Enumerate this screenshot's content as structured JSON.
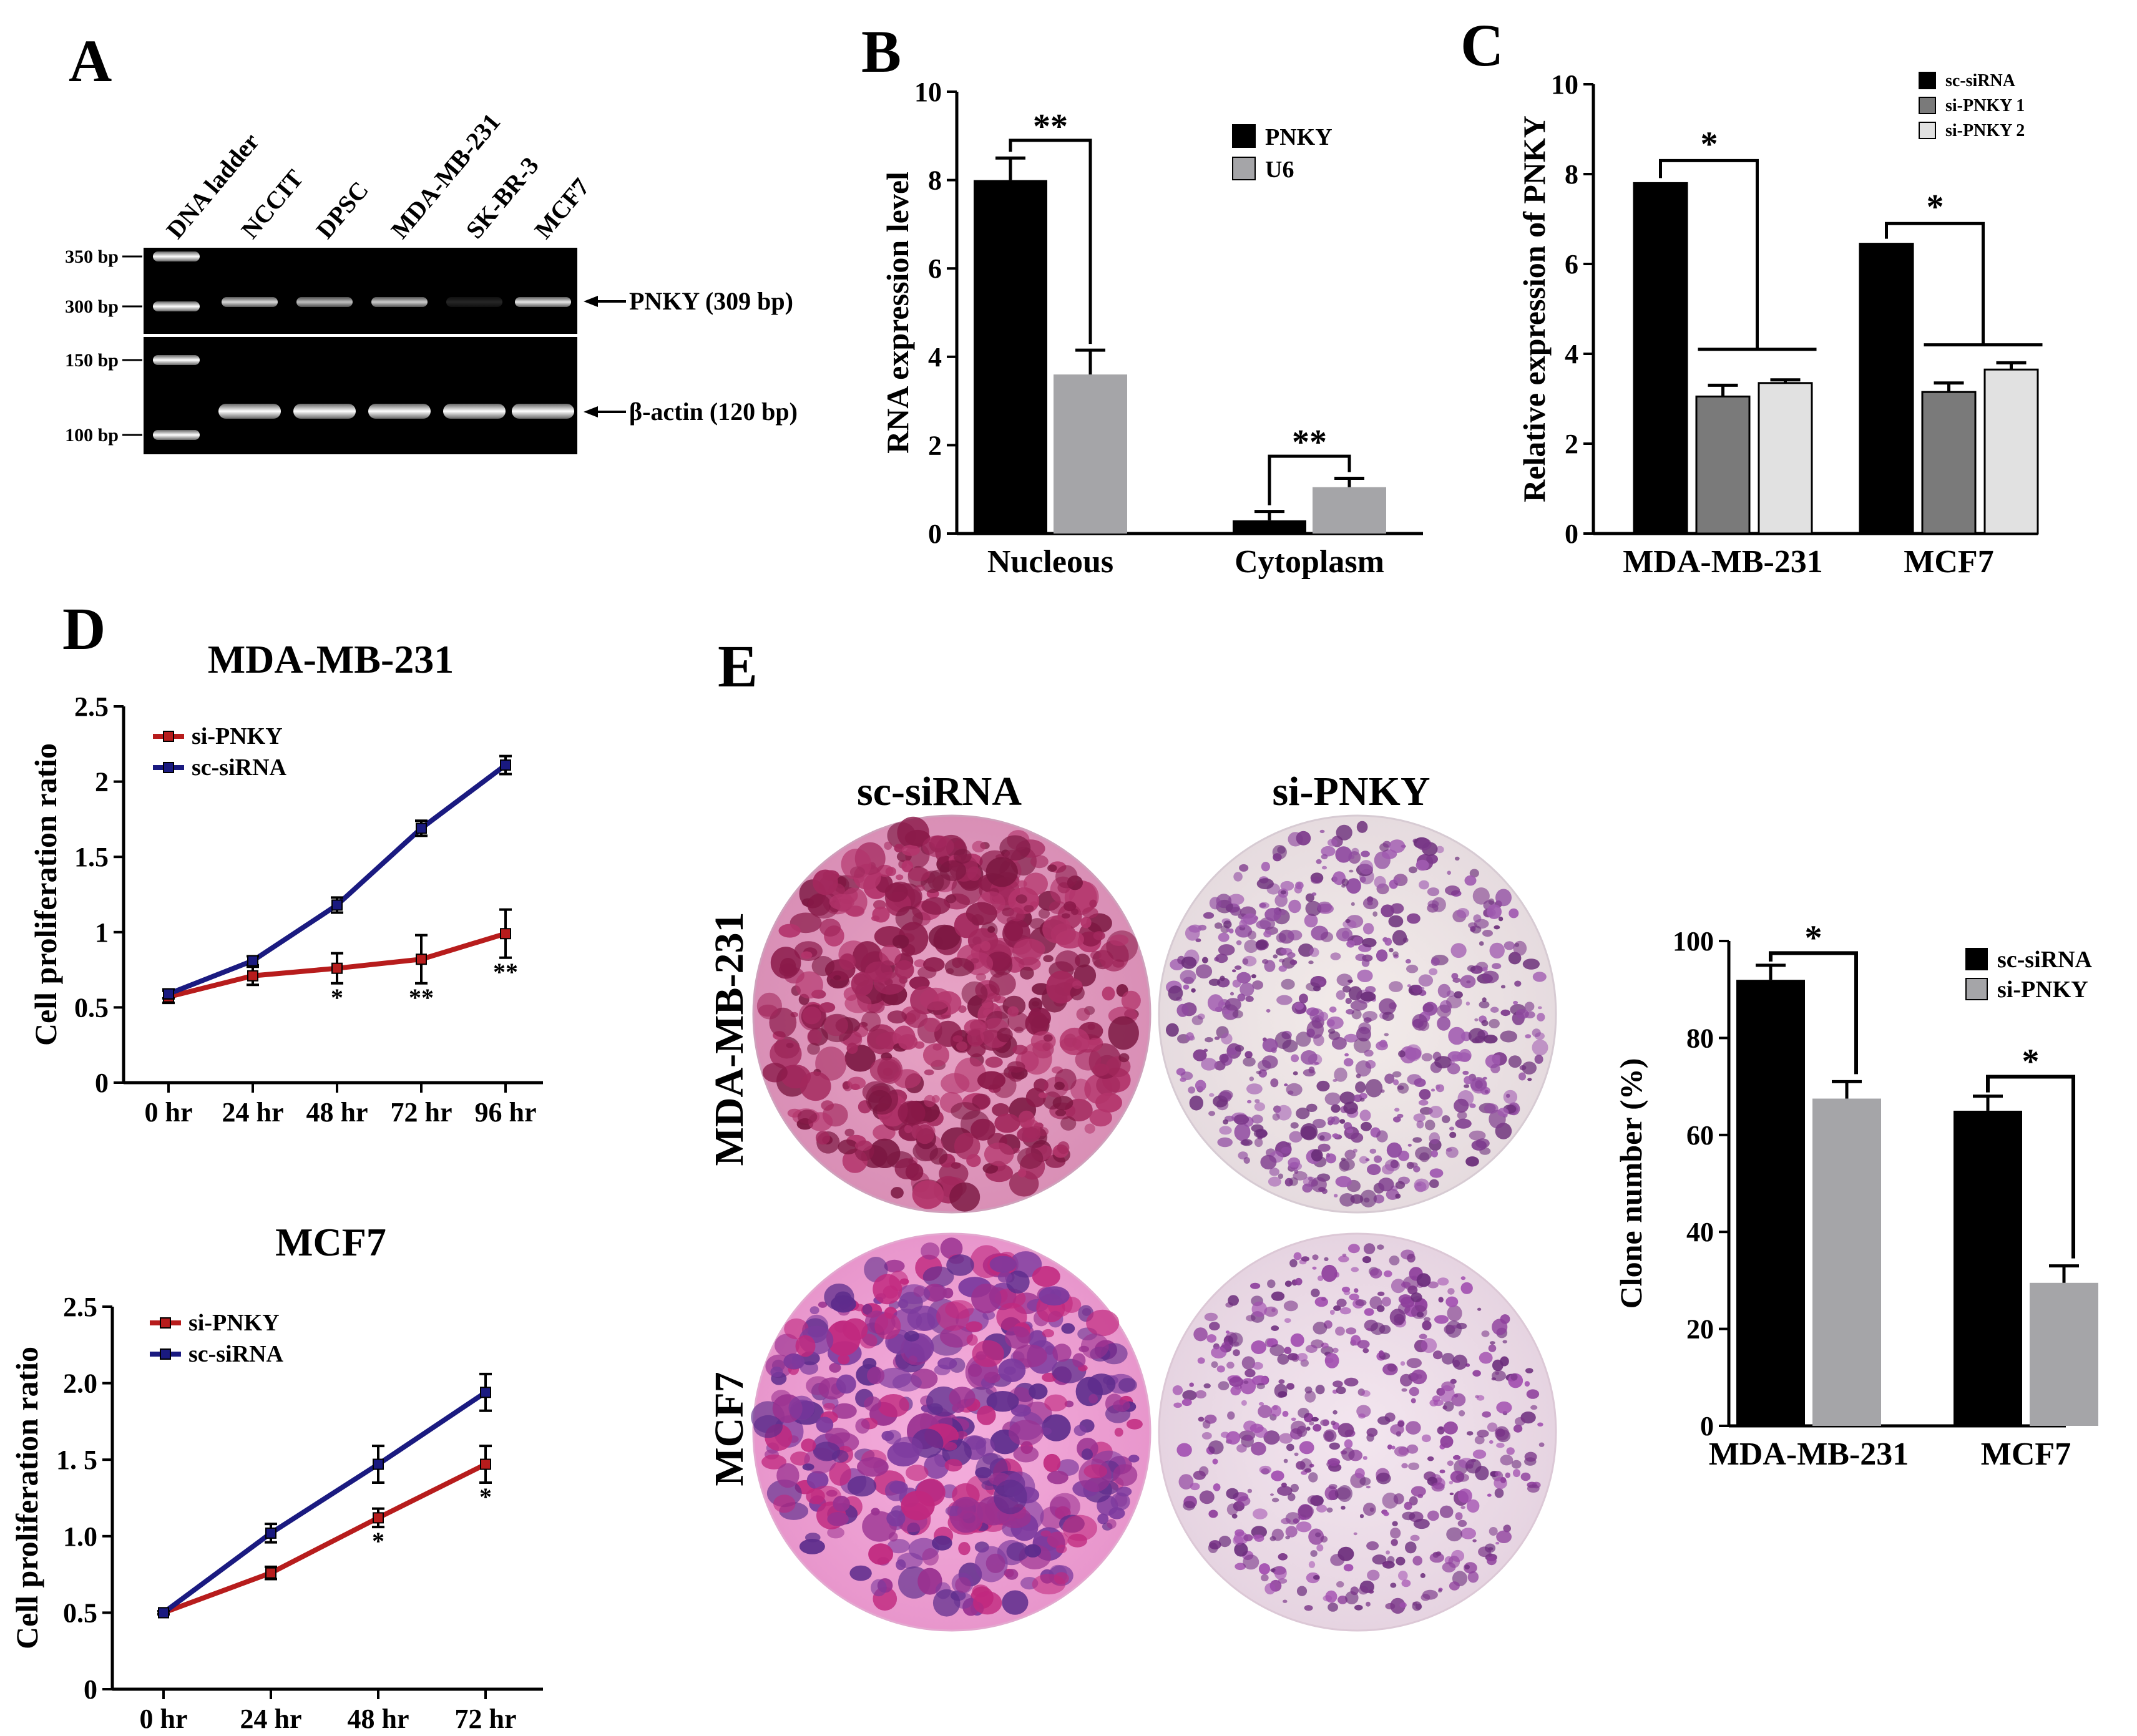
{
  "panels": {
    "A": "A",
    "B": "B",
    "C": "C",
    "D": "D",
    "E": "E"
  },
  "gel": {
    "lanes": [
      "DNA ladder",
      "NCCIT",
      "DPSC",
      "MDA-MB-231",
      "SK-BR-3",
      "MCF7"
    ],
    "ladder_top": [
      "350 bp",
      "300 bp"
    ],
    "ladder_bottom": [
      "150 bp",
      "100 bp"
    ],
    "pnky_label": "PNKY (309 bp)",
    "actin_label": "β-actin (120 bp)"
  },
  "colors": {
    "black": "#000000",
    "gray": "#a5a5a8",
    "darkgray": "#7a7a7a",
    "lightgray": "#e1e1e1",
    "red": "#b71c1c",
    "navy": "#1a1a80",
    "gel": "#000000"
  },
  "chart_data": [
    {
      "id": "B",
      "type": "bar",
      "title": "",
      "ylabel": "RNA expression level",
      "xlabel": "",
      "ylim": [
        0,
        10
      ],
      "yticks": [
        "0",
        "2",
        "4",
        "6",
        "8",
        "10"
      ],
      "categories": [
        "Nucleous",
        "Cytoplasm"
      ],
      "series": [
        {
          "name": "PNKY",
          "color": "#000000",
          "values": [
            8.0,
            0.3
          ],
          "errors": [
            0.5,
            0.2
          ]
        },
        {
          "name": "U6",
          "color": "#a5a5a8",
          "values": [
            3.6,
            1.05
          ],
          "errors": [
            0.55,
            0.2
          ]
        }
      ],
      "significance": [
        "**",
        "**"
      ],
      "legend": "top-right"
    },
    {
      "id": "C",
      "type": "bar",
      "title": "",
      "ylabel": "Relative expression of PNKY",
      "xlabel": "",
      "ylim": [
        0,
        10
      ],
      "yticks": [
        "0",
        "2",
        "4",
        "6",
        "8",
        "10"
      ],
      "categories": [
        "MDA-MB-231",
        "MCF7"
      ],
      "series": [
        {
          "name": "sc-siRNA",
          "color": "#000000",
          "values": [
            7.8,
            6.45
          ],
          "errors": [
            0,
            0
          ]
        },
        {
          "name": "si-PNKY 1",
          "color": "#7a7a7a",
          "values": [
            3.05,
            3.15
          ],
          "errors": [
            0.25,
            0.2
          ]
        },
        {
          "name": "si-PNKY 2",
          "color": "#e1e1e1",
          "values": [
            3.35,
            3.65
          ],
          "errors": [
            0.07,
            0.15
          ]
        }
      ],
      "significance": [
        "*",
        "*"
      ],
      "legend": "top-right"
    },
    {
      "id": "D1",
      "type": "line",
      "title": "MDA-MB-231",
      "ylabel": "Cell proliferation ratio",
      "xlabel": "",
      "ylim": [
        0,
        2.5
      ],
      "yticks": [
        "0",
        "0.5",
        "1",
        "1.5",
        "2",
        "2.5"
      ],
      "x": [
        "0 hr",
        "24 hr",
        "48 hr",
        "72 hr",
        "96 hr"
      ],
      "series": [
        {
          "name": "si-PNKY",
          "color": "#b71c1c",
          "values": [
            0.57,
            0.71,
            0.76,
            0.82,
            0.99
          ],
          "errors": [
            0.04,
            0.06,
            0.1,
            0.16,
            0.16
          ]
        },
        {
          "name": "sc-siRNA",
          "color": "#1a1a80",
          "values": [
            0.59,
            0.81,
            1.18,
            1.69,
            2.11
          ],
          "errors": [
            0.03,
            0.03,
            0.05,
            0.05,
            0.06
          ]
        }
      ],
      "significance": [
        "",
        "",
        "*",
        "**",
        "**"
      ],
      "legend": "top-left"
    },
    {
      "id": "D2",
      "type": "line",
      "title": "MCF7",
      "ylabel": "Cell proliferation ratio",
      "xlabel": "",
      "ylim": [
        0,
        2.5
      ],
      "yticks": [
        "0",
        "0.5",
        "1.0",
        "1. 5",
        "2.0",
        "2.5"
      ],
      "x": [
        "0 hr",
        "24 hr",
        "48 hr",
        "72 hr"
      ],
      "series": [
        {
          "name": "si-PNKY",
          "color": "#b71c1c",
          "values": [
            0.5,
            0.76,
            1.12,
            1.47
          ],
          "errors": [
            0.01,
            0.04,
            0.06,
            0.12
          ]
        },
        {
          "name": "sc-siRNA",
          "color": "#1a1a80",
          "values": [
            0.5,
            1.02,
            1.47,
            1.94
          ],
          "errors": [
            0.01,
            0.06,
            0.12,
            0.12
          ]
        }
      ],
      "significance": [
        "",
        "",
        "*",
        "*"
      ],
      "legend": "top-left"
    },
    {
      "id": "E",
      "type": "bar",
      "title": "",
      "ylabel": "Clone number (%)",
      "xlabel": "",
      "ylim": [
        0,
        100
      ],
      "yticks": [
        "0",
        "20",
        "40",
        "60",
        "80",
        "100"
      ],
      "categories": [
        "MDA-MB-231",
        "MCF7"
      ],
      "series": [
        {
          "name": "sc-siRNA",
          "color": "#000000",
          "values": [
            92,
            65
          ],
          "errors": [
            3,
            3
          ]
        },
        {
          "name": "si-PNKY",
          "color": "#a5a5a8",
          "values": [
            67.5,
            29.5
          ],
          "errors": [
            3.5,
            3.5
          ]
        }
      ],
      "significance": [
        "*",
        "*"
      ],
      "legend": "top-right"
    }
  ],
  "photos": {
    "col_labels": [
      "sc-siRNA",
      "si-PNKY"
    ],
    "row_labels": [
      "MDA-MB-231",
      "MCF7"
    ]
  }
}
